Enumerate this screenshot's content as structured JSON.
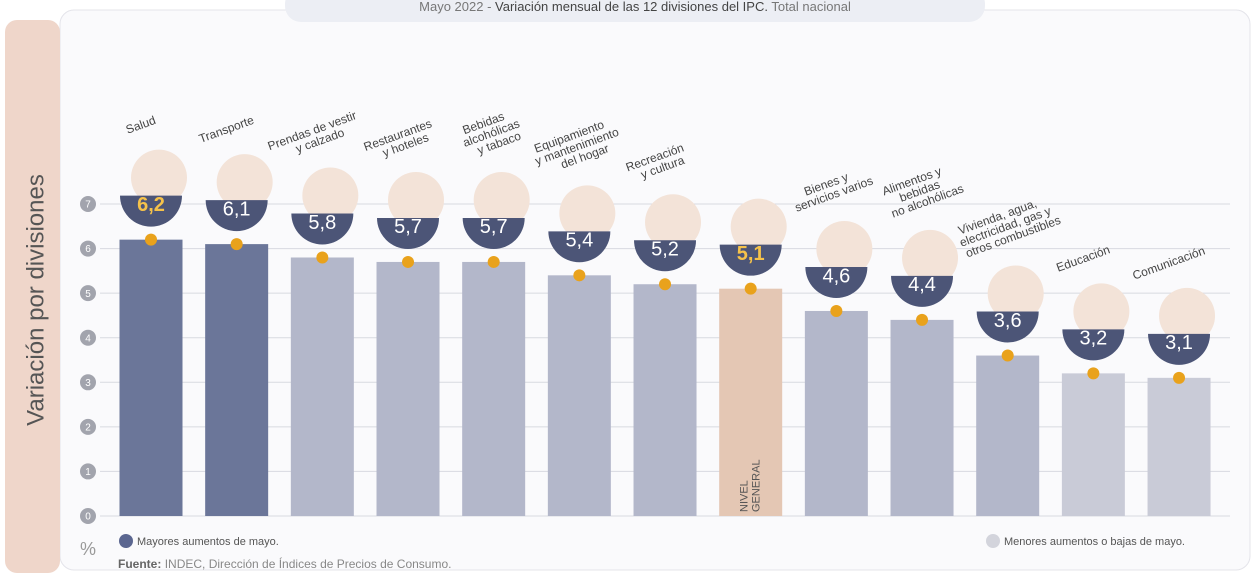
{
  "chart_data": {
    "type": "bar",
    "title_parts": [
      "Mayo 2022 -",
      "Variación mensual de las 12 divisiones del IPC.",
      "Total nacional"
    ],
    "y_label": "Variación por divisiones",
    "unit": "%",
    "categories": [
      [
        "Salud"
      ],
      [
        "Transporte"
      ],
      [
        "Prendas de vestir",
        "y calzado"
      ],
      [
        "Restaurantes",
        "y hoteles"
      ],
      [
        "Bebidas",
        "alcohólicas",
        "y tabaco"
      ],
      [
        "Equipamiento",
        "y mantenimiento",
        "del hogar"
      ],
      [
        "Recreación",
        "y cultura"
      ],
      [
        "NIVEL",
        "GENERAL"
      ],
      [
        "Bienes y",
        "servicios varios"
      ],
      [
        "Alimentos y",
        "bebidas",
        "no alcohólicas"
      ],
      [
        "Vivienda, agua,",
        "electricidad, gas y",
        "otros combustibles"
      ],
      [
        "Educación"
      ],
      [
        "Comunicación"
      ]
    ],
    "values": [
      6.2,
      6.1,
      5.8,
      5.7,
      5.7,
      5.4,
      5.2,
      5.1,
      4.6,
      4.4,
      3.6,
      3.2,
      3.1
    ],
    "value_labels": [
      "6,2",
      "6,1",
      "5,8",
      "5,7",
      "5,7",
      "5,4",
      "5,2",
      "5,1",
      "4,6",
      "4,4",
      "3,6",
      "3,2",
      "3,1"
    ],
    "colors": [
      "#6b7699",
      "#6b7699",
      "#b3b7ca",
      "#b3b7ca",
      "#b3b7ca",
      "#b3b7ca",
      "#b3b7ca",
      "#e4c7b4",
      "#b3b7ca",
      "#b3b7ca",
      "#b3b7ca",
      "#c9cbd7",
      "#c9cbd7"
    ],
    "label_colors": [
      "#f5c24a",
      "#ffffff",
      "#ffffff",
      "#ffffff",
      "#ffffff",
      "#ffffff",
      "#ffffff",
      "#f5c24a",
      "#ffffff",
      "#ffffff",
      "#ffffff",
      "#ffffff",
      "#ffffff"
    ],
    "dot_color": "#e9a21c",
    "ylim": [
      0,
      7
    ],
    "yticks": [
      0,
      1,
      2,
      3,
      4,
      5,
      6,
      7
    ],
    "grid": true,
    "legend": [
      {
        "label": "Mayores aumentos de mayo.",
        "color": "#5b6690"
      },
      {
        "label": "Menores aumentos o bajas de mayo.",
        "color": "#d3d4dc"
      }
    ],
    "source_bold": "Fuente:",
    "source": "INDEC, Dirección de Índices de Precios de Consumo."
  }
}
